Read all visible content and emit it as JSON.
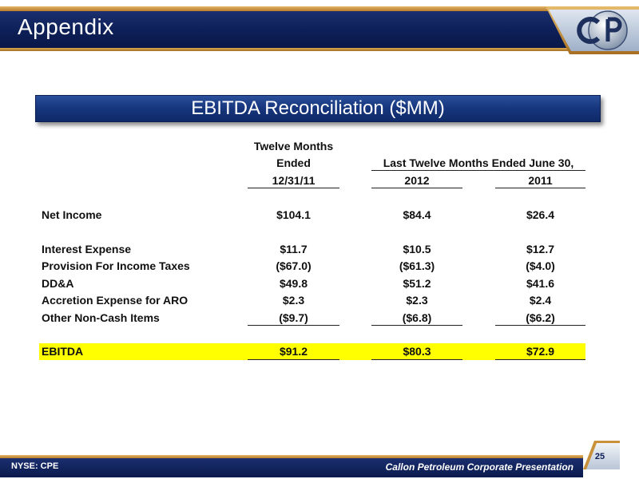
{
  "header": {
    "title": "Appendix"
  },
  "banner": {
    "title": "EBITDA Reconciliation ($MM)"
  },
  "table": {
    "col1_header": [
      "Twelve Months",
      "Ended",
      "12/31/11"
    ],
    "group_header": "Last Twelve Months Ended June 30,",
    "col2_header": "2012",
    "col3_header": "2011",
    "rows": [
      {
        "label": "Net Income",
        "v1": "$104.1",
        "v2": "$84.4",
        "v3": "$26.4"
      },
      {
        "label": "Interest Expense",
        "v1": "$11.7",
        "v2": "$10.5",
        "v3": "$12.7"
      },
      {
        "label": "Provision For Income Taxes",
        "v1": "($67.0)",
        "v2": "($61.3)",
        "v3": "($4.0)"
      },
      {
        "label": "DD&A",
        "v1": "$49.8",
        "v2": "$51.2",
        "v3": "$41.6"
      },
      {
        "label": "Accretion Expense for ARO",
        "v1": "$2.3",
        "v2": "$2.3",
        "v3": "$2.4"
      },
      {
        "label": "Other Non-Cash Items",
        "v1": "($9.7)",
        "v2": "($6.8)",
        "v3": "($6.2)"
      },
      {
        "label": "EBITDA",
        "v1": "$91.2",
        "v2": "$80.3",
        "v3": "$72.9"
      }
    ]
  },
  "footer": {
    "left": "NYSE: CPE",
    "right": "Callon Petroleum Corporate Presentation",
    "page_number": "25"
  },
  "colors": {
    "navy": "#0d1f57",
    "gold": "#c8913a",
    "highlight": "#ffff00"
  }
}
